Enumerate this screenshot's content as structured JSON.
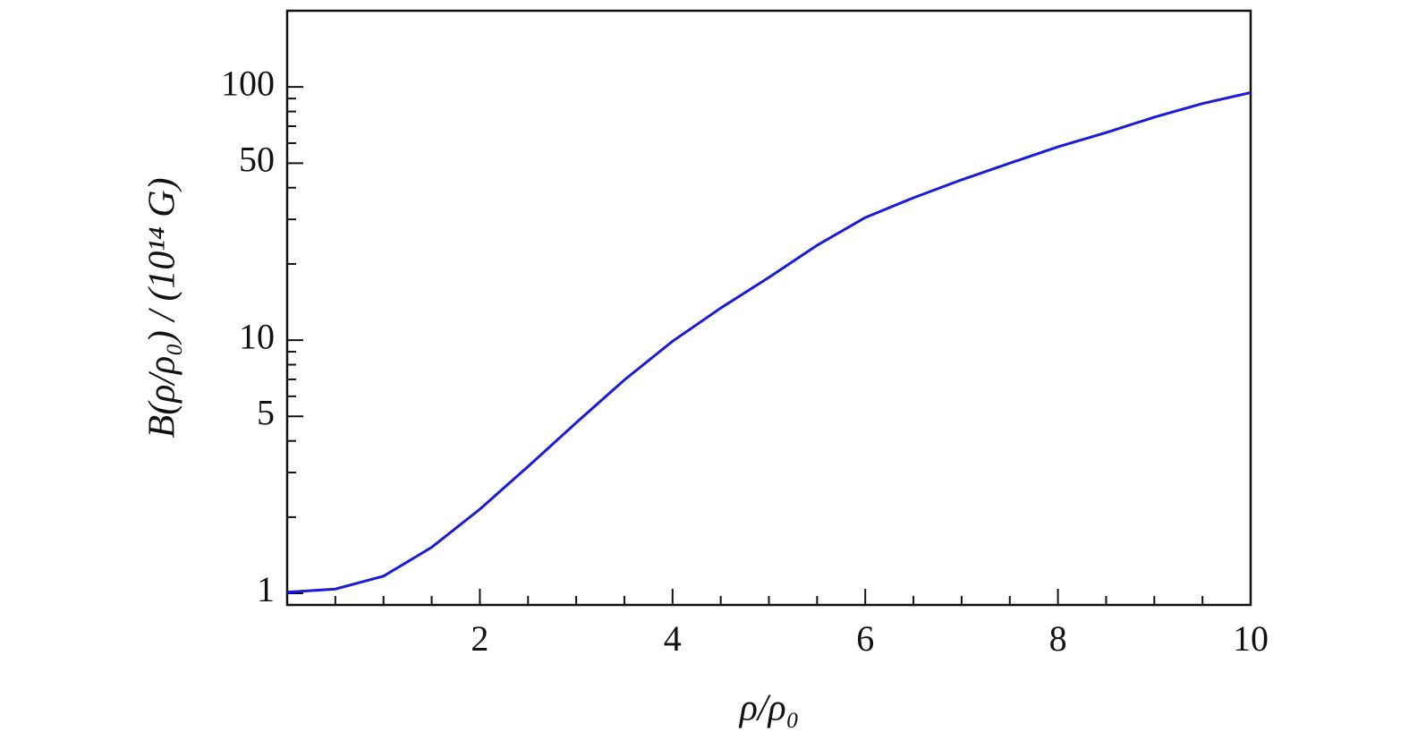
{
  "chart_data": {
    "type": "line",
    "x_label": "ρ/ρ₀",
    "y_label": "B(ρ/ρ₀) / (10¹⁴ G)",
    "x": [
      0,
      0.5,
      1,
      1.5,
      2,
      2.5,
      3,
      3.5,
      4,
      4.5,
      5,
      5.5,
      6,
      6.5,
      7,
      7.5,
      8,
      8.5,
      9,
      9.5,
      10
    ],
    "series": [
      {
        "color": "#1a1adf",
        "values": [
          1.01,
          1.04,
          1.17,
          1.52,
          2.15,
          3.17,
          4.72,
          6.97,
          9.9,
          13.4,
          17.7,
          23.7,
          30.5,
          36.5,
          43,
          50,
          58,
          66,
          76,
          86,
          95
        ]
      }
    ],
    "xlim": [
      0,
      10
    ],
    "xticks": [
      2,
      4,
      6,
      8,
      10
    ],
    "xminorticks": [
      0.5,
      1,
      1.5,
      2.5,
      3,
      3.5,
      4.5,
      5,
      5.5,
      6.5,
      7,
      7.5,
      8.5,
      9,
      9.5
    ],
    "ylim": [
      0.9,
      200
    ],
    "yscale": "log",
    "yticks": [
      1,
      5,
      10,
      50,
      100
    ],
    "yminorticks": [
      2,
      3,
      4,
      6,
      7,
      8,
      9,
      20,
      30,
      40,
      60,
      70,
      80,
      90,
      200
    ]
  }
}
